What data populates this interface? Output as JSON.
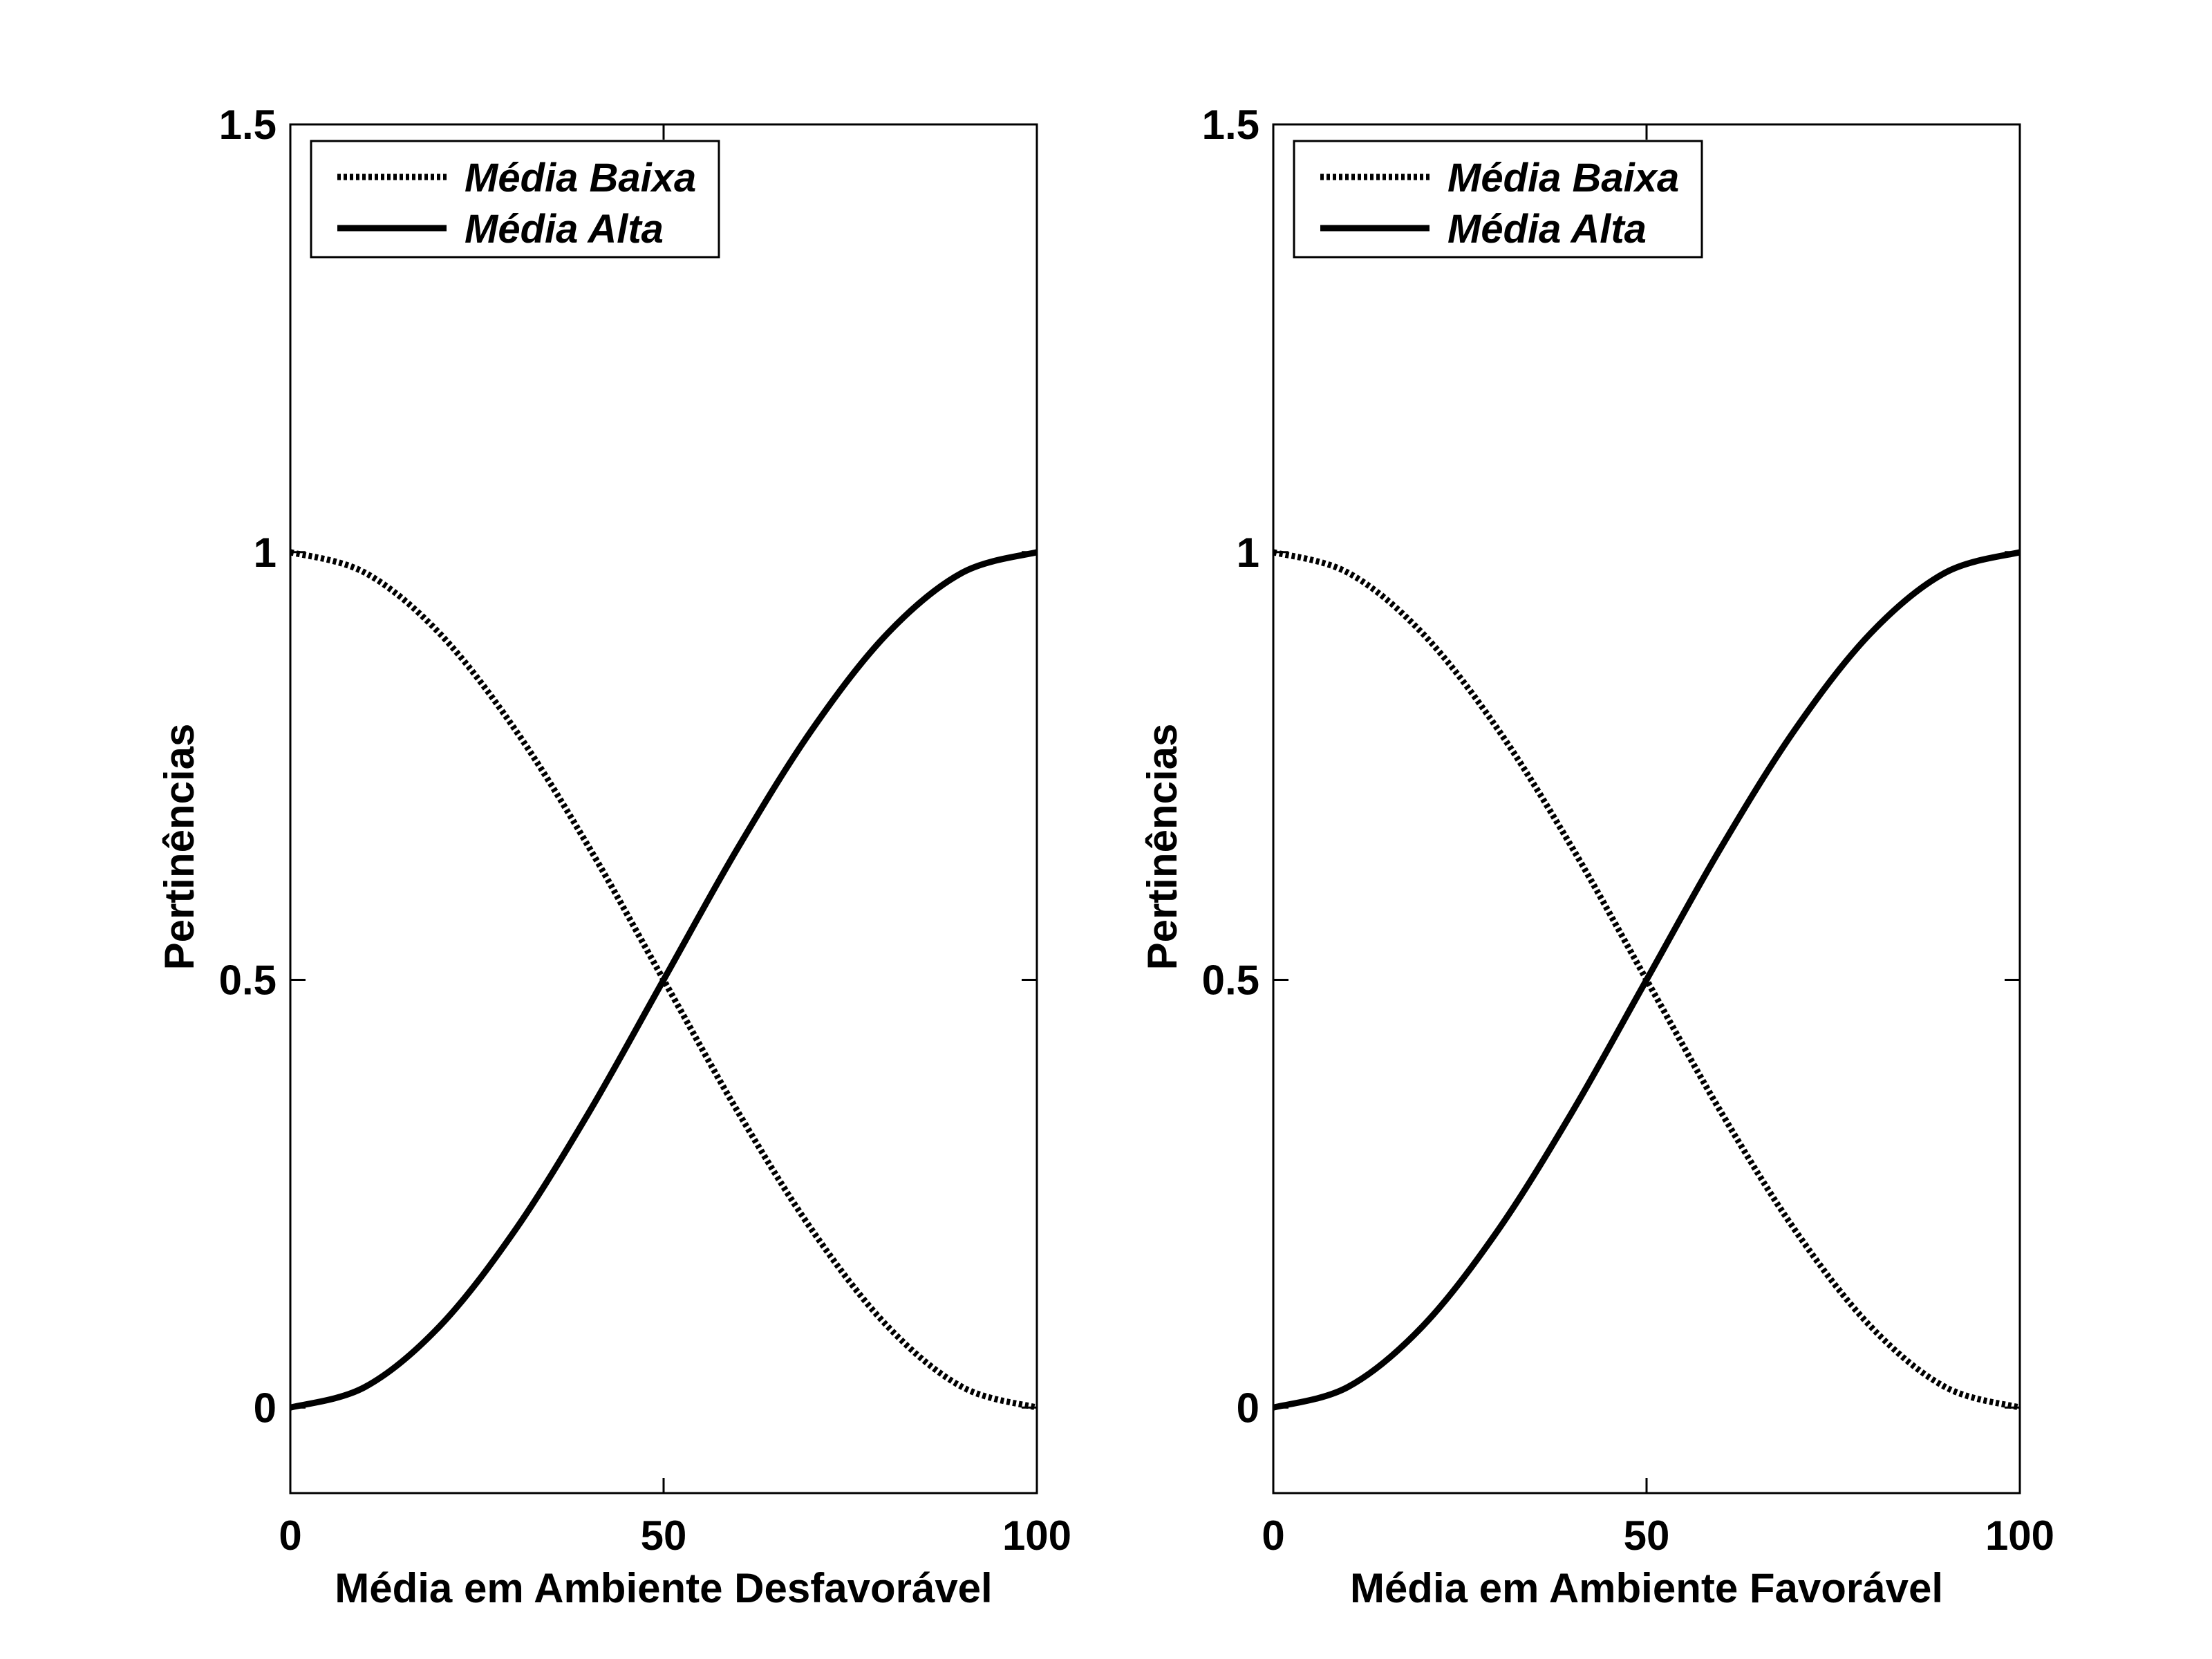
{
  "chart_data": [
    {
      "type": "line",
      "title": "",
      "xlabel": "Média em Ambiente Desfavorável",
      "ylabel": "Pertinências",
      "xlim": [
        0,
        100
      ],
      "ylim": [
        -0.1,
        1.5
      ],
      "xticks": [
        0,
        50,
        100
      ],
      "xtick_labels": [
        "0",
        "50",
        "100"
      ],
      "yticks": [
        0,
        0.5,
        1,
        1.5
      ],
      "ytick_labels": [
        "0",
        "0.5",
        "1",
        "1.5"
      ],
      "grid": false,
      "legend_position": "top-left",
      "x": [
        0,
        10,
        20,
        30,
        40,
        50,
        60,
        70,
        80,
        90,
        100
      ],
      "series": [
        {
          "name": "Média Baixa",
          "style": "dotted",
          "color": "#000000",
          "values": [
            1.0,
            0.976,
            0.905,
            0.794,
            0.655,
            0.5,
            0.345,
            0.206,
            0.095,
            0.024,
            0.0
          ]
        },
        {
          "name": "Média Alta",
          "style": "solid",
          "color": "#000000",
          "values": [
            0.0,
            0.024,
            0.095,
            0.206,
            0.345,
            0.5,
            0.655,
            0.794,
            0.905,
            0.976,
            1.0
          ]
        }
      ]
    },
    {
      "type": "line",
      "title": "",
      "xlabel": "Média em Ambiente Favorável",
      "ylabel": "Pertinências",
      "xlim": [
        0,
        100
      ],
      "ylim": [
        -0.1,
        1.5
      ],
      "xticks": [
        0,
        50,
        100
      ],
      "xtick_labels": [
        "0",
        "50",
        "100"
      ],
      "yticks": [
        0,
        0.5,
        1,
        1.5
      ],
      "ytick_labels": [
        "0",
        "0.5",
        "1",
        "1.5"
      ],
      "grid": false,
      "legend_position": "top-left",
      "x": [
        0,
        10,
        20,
        30,
        40,
        50,
        60,
        70,
        80,
        90,
        100
      ],
      "series": [
        {
          "name": "Média Baixa",
          "style": "dotted",
          "color": "#000000",
          "values": [
            1.0,
            0.976,
            0.905,
            0.794,
            0.655,
            0.5,
            0.345,
            0.206,
            0.095,
            0.024,
            0.0
          ]
        },
        {
          "name": "Média Alta",
          "style": "solid",
          "color": "#000000",
          "values": [
            0.0,
            0.024,
            0.095,
            0.206,
            0.345,
            0.5,
            0.655,
            0.794,
            0.905,
            0.976,
            1.0
          ]
        }
      ]
    }
  ]
}
